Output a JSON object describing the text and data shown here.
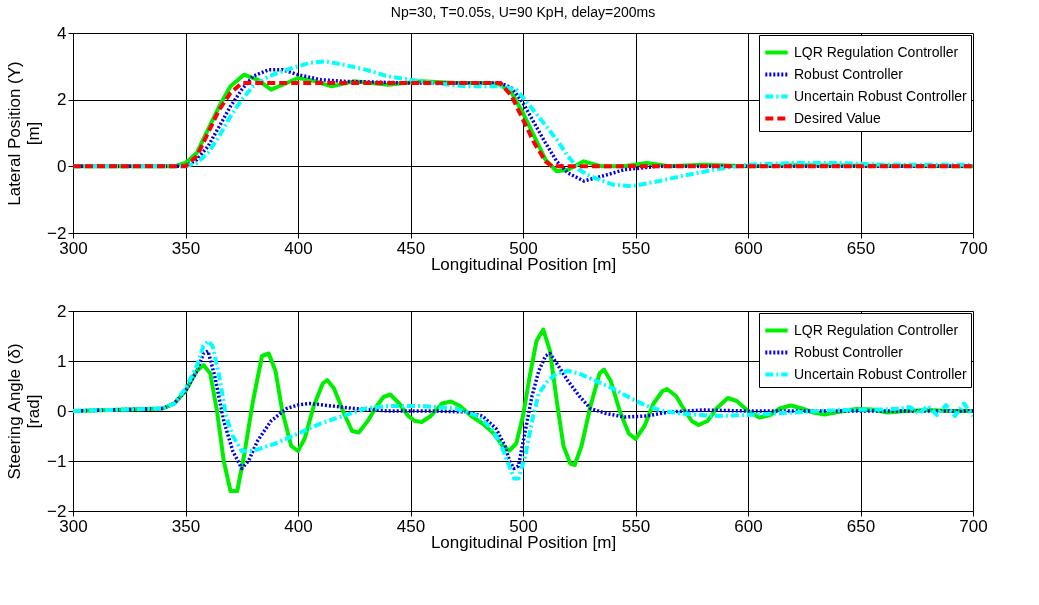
{
  "chart_data": [
    {
      "type": "line",
      "title": "Np=30, T=0.05s, U=90 KpH, delay=200ms",
      "xlabel": "Longitudinal Position [m]",
      "ylabel": "Lateral Position (Y)\n[m]",
      "xlim": [
        300,
        700
      ],
      "xticks": [
        300,
        350,
        400,
        450,
        500,
        550,
        600,
        650,
        700
      ],
      "ylim": [
        -2,
        4
      ],
      "yticks": [
        -2,
        0,
        2,
        4
      ],
      "grid": true,
      "legend": "top right",
      "series": [
        {
          "name": "LQR Regulation Controller",
          "color": "#00ee00",
          "line_style": "solid",
          "x": [
            300,
            345,
            350,
            355,
            360,
            365,
            370,
            376,
            382,
            388,
            395,
            400,
            405,
            415,
            425,
            440,
            455,
            470,
            485,
            490,
            495,
            500,
            505,
            510,
            515,
            520,
            527,
            535,
            545,
            555,
            565,
            580,
            600,
            620,
            700
          ],
          "values": [
            0,
            0,
            0.1,
            0.4,
            1.1,
            1.8,
            2.4,
            2.75,
            2.6,
            2.3,
            2.5,
            2.65,
            2.6,
            2.4,
            2.55,
            2.45,
            2.55,
            2.5,
            2.5,
            2.45,
            2.2,
            1.6,
            0.9,
            0.2,
            -0.15,
            -0.1,
            0.15,
            0,
            0,
            0.1,
            0,
            0.05,
            0,
            0.03,
            0
          ]
        },
        {
          "name": "Robust Controller",
          "color": "#0000ee",
          "line_style": "dotted",
          "x": [
            300,
            350,
            355,
            360,
            365,
            370,
            375,
            380,
            387,
            393,
            400,
            410,
            420,
            450,
            490,
            495,
            500,
            505,
            510,
            515,
            520,
            527,
            535,
            545,
            560,
            700
          ],
          "values": [
            0,
            0,
            0.2,
            0.6,
            1.2,
            1.8,
            2.3,
            2.7,
            2.9,
            2.9,
            2.75,
            2.6,
            2.55,
            2.5,
            2.5,
            2.35,
            1.9,
            1.3,
            0.7,
            0.15,
            -0.2,
            -0.44,
            -0.3,
            -0.1,
            0,
            0
          ]
        },
        {
          "name": "Uncertain Robust Controller",
          "color": "#00ffff",
          "line_style": "dashdot",
          "x": [
            300,
            350,
            355,
            360,
            365,
            370,
            375,
            380,
            387,
            395,
            405,
            412,
            420,
            430,
            440,
            450,
            460,
            475,
            490,
            497,
            502,
            508,
            515,
            520,
            525,
            530,
            540,
            548,
            560,
            570,
            585,
            600,
            620,
            640,
            660,
            700
          ],
          "values": [
            0,
            0,
            0.1,
            0.4,
            0.9,
            1.5,
            2,
            2.4,
            2.7,
            2.9,
            3.1,
            3.15,
            3.05,
            2.9,
            2.7,
            2.6,
            2.5,
            2.4,
            2.4,
            2.3,
            1.9,
            1.4,
            0.8,
            0.3,
            -0.1,
            -0.3,
            -0.55,
            -0.6,
            -0.45,
            -0.3,
            -0.1,
            0.05,
            0.1,
            0.1,
            0.05,
            0.05
          ]
        },
        {
          "name": "Desired Value",
          "color": "#ff0000",
          "line_style": "dashed",
          "x": [
            300,
            350,
            355,
            360,
            365,
            370,
            375,
            490,
            495,
            500,
            505,
            510,
            513,
            700
          ],
          "values": [
            0,
            0,
            0.3,
            1,
            1.7,
            2.2,
            2.5,
            2.5,
            2.1,
            1.4,
            0.7,
            0.15,
            0,
            0
          ]
        }
      ]
    },
    {
      "type": "line",
      "xlabel": "Longitudinal Position [m]",
      "ylabel": "Steering Angle (δ)\n[rad]",
      "xlim": [
        300,
        700
      ],
      "xticks": [
        300,
        350,
        400,
        450,
        500,
        550,
        600,
        650,
        700
      ],
      "ylim": [
        -2,
        2
      ],
      "yticks": [
        -2,
        -1,
        0,
        1,
        2
      ],
      "grid": true,
      "legend": "top right",
      "series": [
        {
          "name": "LQR Regulation Controller",
          "color": "#00ee00",
          "line_style": "solid",
          "x": [
            300,
            340,
            345,
            350,
            355,
            358,
            361,
            364,
            367,
            370,
            373,
            376,
            380,
            384,
            387,
            390,
            393,
            397,
            400,
            403,
            407,
            411,
            413,
            416,
            420,
            424,
            427,
            431,
            435,
            438,
            441,
            445,
            449,
            452,
            455,
            459,
            464,
            468,
            472,
            477,
            482,
            487,
            491,
            494,
            497,
            500,
            503,
            506,
            509,
            512,
            515,
            518,
            521,
            523,
            526,
            530,
            534,
            536,
            539,
            543,
            547,
            550,
            554,
            558,
            562,
            564,
            568,
            572,
            575,
            578,
            582,
            586,
            591,
            595,
            600,
            605,
            610,
            614,
            619,
            624,
            629,
            634,
            640,
            648,
            655,
            662,
            670,
            680,
            690,
            700
          ],
          "values": [
            0,
            0.05,
            0.15,
            0.4,
            0.8,
            0.92,
            0.75,
            0,
            -1,
            -1.6,
            -1.6,
            -0.9,
            0.2,
            1.1,
            1.15,
            0.8,
            0,
            -0.7,
            -0.8,
            -0.55,
            0.1,
            0.55,
            0.62,
            0.45,
            0,
            -0.4,
            -0.43,
            -0.2,
            0.1,
            0.28,
            0.33,
            0.15,
            -0.1,
            -0.2,
            -0.22,
            -0.1,
            0.15,
            0.19,
            0.1,
            -0.1,
            -0.25,
            -0.45,
            -0.7,
            -0.79,
            -0.65,
            -0.1,
            0.7,
            1.4,
            1.63,
            1.2,
            0.2,
            -0.7,
            -1.05,
            -1.08,
            -0.7,
            0.1,
            0.75,
            0.83,
            0.6,
            0,
            -0.45,
            -0.56,
            -0.3,
            0.15,
            0.4,
            0.44,
            0.3,
            0,
            -0.2,
            -0.28,
            -0.2,
            0.05,
            0.26,
            0.2,
            0,
            -0.13,
            -0.08,
            0.05,
            0.11,
            0.05,
            -0.03,
            -0.07,
            -0.02,
            0.04,
            0.03,
            -0.03,
            0,
            0.02,
            0,
            0
          ]
        },
        {
          "name": "Robust Controller",
          "color": "#0000ee",
          "line_style": "dotted",
          "x": [
            300,
            340,
            345,
            350,
            355,
            358,
            360,
            363,
            367,
            371,
            375,
            378,
            382,
            388,
            395,
            400,
            405,
            415,
            425,
            440,
            460,
            475,
            482,
            488,
            492,
            494,
            496,
            498,
            501,
            504,
            507,
            510,
            512,
            515,
            520,
            525,
            530,
            537,
            545,
            555,
            565,
            580,
            600,
            700
          ],
          "values": [
            0,
            0.05,
            0.15,
            0.4,
            0.8,
            1.15,
            1.2,
            0.7,
            -0.2,
            -0.8,
            -1.15,
            -1,
            -0.6,
            -0.2,
            0.05,
            0.12,
            0.15,
            0.1,
            0.05,
            0,
            0,
            -0.02,
            -0.1,
            -0.35,
            -0.7,
            -1,
            -1.15,
            -1.1,
            -0.4,
            0.3,
            0.8,
            1.1,
            1.15,
            0.95,
            0.6,
            0.3,
            0.05,
            -0.05,
            -0.12,
            -0.1,
            -0.02,
            0.02,
            0,
            0
          ]
        },
        {
          "name": "Uncertain Robust Controller",
          "color": "#00ffff",
          "line_style": "dashdot",
          "x": [
            300,
            340,
            345,
            350,
            355,
            358,
            360,
            362,
            365,
            368,
            371,
            375,
            380,
            390,
            400,
            410,
            420,
            430,
            440,
            455,
            470,
            480,
            486,
            490,
            493,
            496,
            498,
            501,
            504,
            507,
            511,
            515,
            520,
            525,
            530,
            540,
            548,
            555,
            562,
            570,
            585,
            600,
            620,
            640,
            660,
            668,
            672,
            676,
            680,
            684,
            688,
            692,
            696,
            700
          ],
          "values": [
            0,
            0.05,
            0.15,
            0.45,
            0.9,
            1.3,
            1.4,
            1.3,
            0.7,
            -0.1,
            -0.5,
            -0.8,
            -0.8,
            -0.65,
            -0.45,
            -0.25,
            -0.1,
            0.05,
            0.1,
            0.1,
            0.05,
            -0.1,
            -0.35,
            -0.65,
            -1,
            -1.35,
            -1.35,
            -0.9,
            -0.2,
            0.35,
            0.6,
            0.75,
            0.8,
            0.75,
            0.65,
            0.45,
            0.25,
            0.1,
            0,
            -0.05,
            -0.1,
            -0.08,
            -0.03,
            0.02,
            0.03,
            0.05,
            0.08,
            -0.05,
            0.1,
            -0.08,
            0.12,
            -0.1,
            0.15,
            -0.1
          ]
        }
      ]
    }
  ]
}
